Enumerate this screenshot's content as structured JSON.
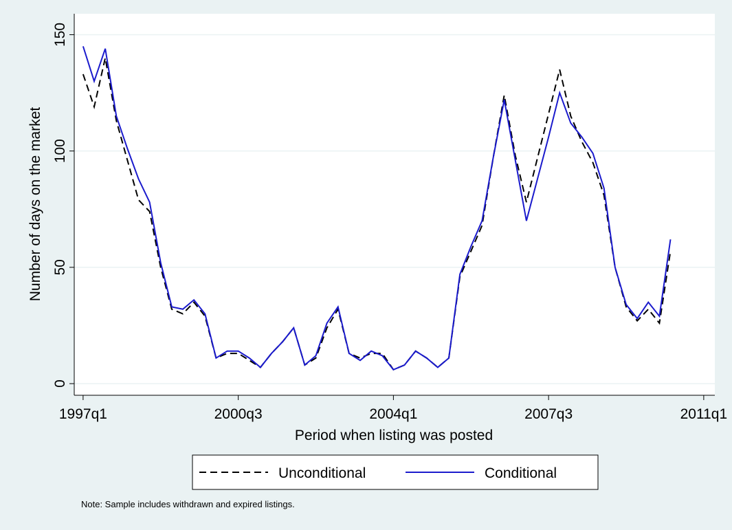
{
  "chart_data": {
    "type": "line",
    "x_label": "Period when listing was posted",
    "y_label": "Number of days on the market",
    "note": "Note: Sample includes withdrawn and expired listings.",
    "x": [
      1997,
      1997.25,
      1997.5,
      1997.75,
      1998,
      1998.25,
      1998.5,
      1998.75,
      1999,
      1999.25,
      1999.5,
      1999.75,
      2000,
      2000.25,
      2000.5,
      2000.75,
      2001,
      2001.25,
      2001.5,
      2001.75,
      2002,
      2002.25,
      2002.5,
      2002.75,
      2003,
      2003.25,
      2003.5,
      2003.75,
      2004,
      2004.25,
      2004.5,
      2004.75,
      2005,
      2005.25,
      2005.5,
      2005.75,
      2006,
      2006.25,
      2006.5,
      2006.75,
      2007,
      2007.25,
      2007.5,
      2007.75,
      2008,
      2008.25,
      2008.5,
      2008.75,
      2009,
      2009.25,
      2009.5,
      2009.75,
      2010,
      2010.25
    ],
    "series": [
      {
        "name": "Unconditional",
        "color": "#000000",
        "dash": true,
        "values": [
          133,
          119,
          140,
          113,
          96,
          79,
          74,
          50,
          32,
          30,
          35,
          29,
          11,
          13,
          13,
          10,
          7,
          13,
          18,
          24,
          8,
          11,
          24,
          32,
          13,
          11,
          13,
          13,
          6,
          8,
          14,
          11,
          7,
          11,
          46,
          57,
          68,
          97,
          124,
          98,
          78,
          97,
          116,
          135,
          115,
          104,
          95,
          81,
          50,
          33,
          27,
          32,
          26,
          57
        ]
      },
      {
        "name": "Conditional",
        "color": "#1a1acc",
        "dash": false,
        "values": [
          145,
          130,
          144,
          115,
          101,
          88,
          78,
          52,
          33,
          32,
          36,
          30,
          11,
          14,
          14,
          11,
          7,
          13,
          18,
          24,
          8,
          12,
          26,
          33,
          13,
          10,
          14,
          12,
          6,
          8,
          14,
          11,
          7,
          11,
          47,
          59,
          70,
          97,
          122,
          96,
          70,
          88,
          106,
          125,
          112,
          106,
          99,
          84,
          50,
          34,
          28,
          35,
          29,
          62
        ]
      }
    ],
    "xlim": [
      1996.8,
      2011.25
    ],
    "xticks": [
      {
        "value": 1997,
        "label": "1997q1"
      },
      {
        "value": 2000.5,
        "label": "2000q3"
      },
      {
        "value": 2004,
        "label": "2004q1"
      },
      {
        "value": 2007.5,
        "label": "2007q3"
      },
      {
        "value": 2011,
        "label": "2011q1"
      }
    ],
    "ylim": [
      -5,
      159
    ],
    "yticks": [
      0,
      50,
      100,
      150
    ],
    "grid": true
  }
}
